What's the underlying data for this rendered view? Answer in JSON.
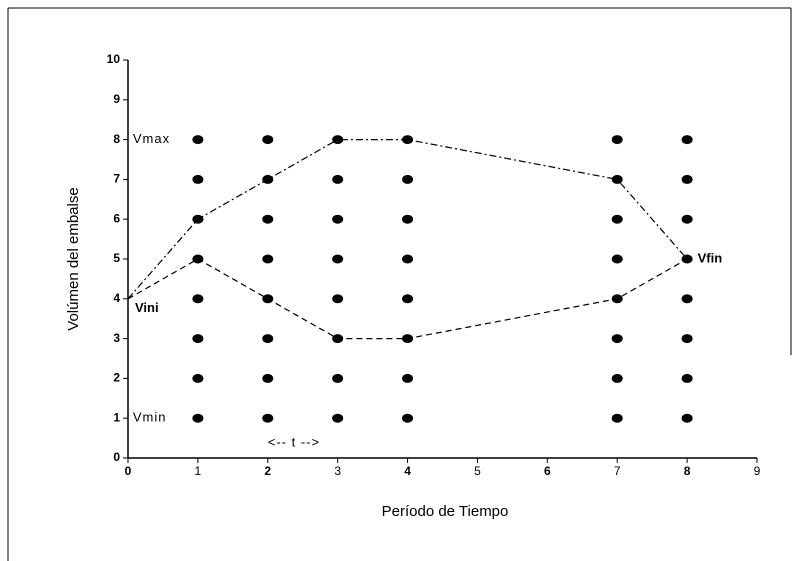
{
  "chart_data": {
    "type": "scatter",
    "xlabel": "Período de Tiempo",
    "ylabel": "Volúmen del embalse",
    "xlim": [
      0,
      9
    ],
    "ylim": [
      0,
      10
    ],
    "xticks": [
      0,
      1,
      2,
      3,
      4,
      5,
      6,
      7,
      8,
      9
    ],
    "yticks": [
      0,
      1,
      2,
      3,
      4,
      5,
      6,
      7,
      8,
      9,
      10
    ],
    "grid": false,
    "series": [
      {
        "color": "#000000",
        "kind": "points",
        "x": [
          1,
          1,
          1,
          1,
          1,
          1,
          1,
          1,
          2,
          2,
          2,
          2,
          2,
          2,
          2,
          2,
          3,
          3,
          3,
          3,
          3,
          3,
          3,
          3,
          4,
          4,
          4,
          4,
          4,
          4,
          4,
          4,
          7,
          7,
          7,
          7,
          7,
          7,
          7,
          7,
          8,
          8,
          8,
          8,
          8,
          8,
          8,
          8
        ],
        "values": [
          1,
          2,
          3,
          4,
          5,
          6,
          7,
          8,
          1,
          2,
          3,
          4,
          5,
          6,
          7,
          8,
          1,
          2,
          3,
          4,
          5,
          6,
          7,
          8,
          1,
          2,
          3,
          4,
          5,
          6,
          7,
          8,
          1,
          2,
          3,
          4,
          5,
          6,
          7,
          8,
          1,
          2,
          3,
          4,
          5,
          6,
          7,
          8
        ]
      },
      {
        "color": "#000000",
        "kind": "line",
        "linestyle": "dashdot",
        "x": [
          0,
          1,
          2,
          3,
          4,
          7,
          8
        ],
        "values": [
          4,
          6,
          7,
          8,
          8,
          7,
          5
        ]
      },
      {
        "color": "#000000",
        "kind": "line",
        "linestyle": "dashed",
        "x": [
          0,
          1,
          2,
          3,
          4,
          7,
          8
        ],
        "values": [
          4,
          5,
          4,
          3,
          3,
          4,
          5
        ]
      }
    ],
    "annotations": [
      {
        "text": "Vmax",
        "x": 0.07,
        "y": 8,
        "bold": false
      },
      {
        "text": "Vmin",
        "x": 0.07,
        "y": 1,
        "bold": false
      },
      {
        "text": "Vini",
        "x": 0.1,
        "y": 3.75,
        "bold": true
      },
      {
        "text": "Vfin",
        "x": 8.15,
        "y": 5,
        "bold": true
      },
      {
        "text": "<-- t -->",
        "x": 2,
        "y": 0.37,
        "bold": false
      }
    ]
  }
}
